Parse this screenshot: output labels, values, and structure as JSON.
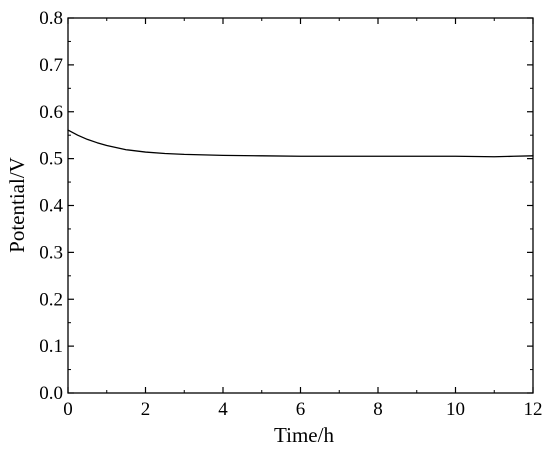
{
  "chart_data": {
    "type": "line",
    "title": "",
    "xlabel": "Time/h",
    "ylabel": "Potential/V",
    "xlim": [
      0,
      12
    ],
    "ylim": [
      0.0,
      0.8
    ],
    "x_ticks": [
      0,
      2,
      4,
      6,
      8,
      10,
      12
    ],
    "x_tick_labels": [
      "0",
      "2",
      "4",
      "6",
      "8",
      "10",
      "12"
    ],
    "y_ticks": [
      0.0,
      0.1,
      0.2,
      0.3,
      0.4,
      0.5,
      0.6,
      0.7,
      0.8
    ],
    "y_tick_labels": [
      "0.0",
      "0.1",
      "0.2",
      "0.3",
      "0.4",
      "0.5",
      "0.6",
      "0.7",
      "0.8"
    ],
    "grid": false,
    "legend": "none",
    "series": [
      {
        "color": "#000000",
        "x": [
          0,
          0.25,
          0.5,
          0.75,
          1,
          1.5,
          2,
          2.5,
          3,
          3.5,
          4,
          5,
          6,
          7,
          8,
          9,
          10,
          11,
          11.5,
          12
        ],
        "y": [
          0.561,
          0.55,
          0.541,
          0.534,
          0.528,
          0.519,
          0.514,
          0.511,
          0.509,
          0.508,
          0.507,
          0.506,
          0.505,
          0.505,
          0.505,
          0.505,
          0.505,
          0.504,
          0.505,
          0.506
        ]
      }
    ]
  }
}
